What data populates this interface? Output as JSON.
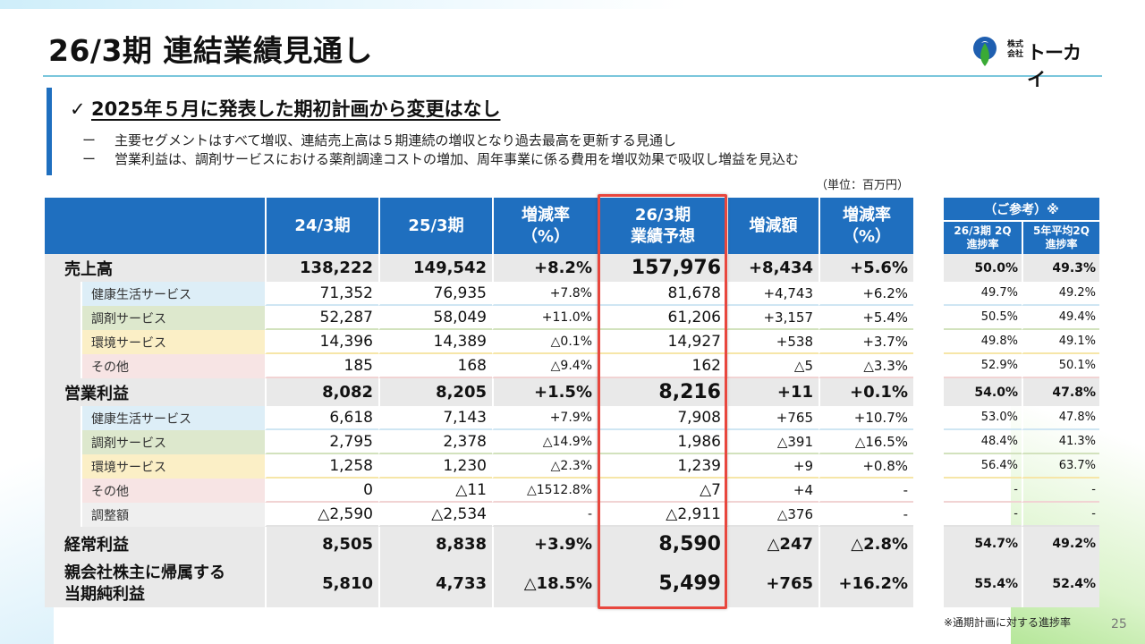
{
  "title": "26/3期 連結業績見通し",
  "logo": {
    "small": "株式\n会社",
    "name": "トーカイ",
    "colors": {
      "blue": "#1f5fb0",
      "green": "#3aaa35"
    }
  },
  "headline": {
    "check": "✓",
    "text": "2025年５月に発表した期初計画から変更はなし"
  },
  "bullets": [
    {
      "dash": "ー",
      "text": "主要セグメントはすべて増収、連結売上高は５期連続の増収となり過去最高を更新する見通し"
    },
    {
      "dash": "ー",
      "text": "営業利益は、調剤サービスにおける薬剤調達コストの増加、周年事業に係る費用を増収効果で吸収し増益を見込む"
    }
  ],
  "unit": "（単位：百万円）",
  "table": {
    "headers": [
      "24/3期",
      "25/3期",
      "増減率\n（%）",
      "26/3期\n業績予想",
      "増減額",
      "増減率\n（%）"
    ],
    "rows": [
      {
        "label": "売上高",
        "v": [
          "138,222",
          "149,542",
          "+8.2%",
          "157,976",
          "+8,434",
          "+5.6%"
        ],
        "ref": [
          "50.0%",
          "49.3%"
        ]
      },
      {
        "label": "健康生活サービス",
        "v": [
          "71,352",
          "76,935",
          "+7.8%",
          "81,678",
          "+4,743",
          "+6.2%"
        ],
        "ref": [
          "49.7%",
          "49.2%"
        ]
      },
      {
        "label": "調剤サービス",
        "v": [
          "52,287",
          "58,049",
          "+11.0%",
          "61,206",
          "+3,157",
          "+5.4%"
        ],
        "ref": [
          "50.5%",
          "49.4%"
        ]
      },
      {
        "label": "環境サービス",
        "v": [
          "14,396",
          "14,389",
          "△0.1%",
          "14,927",
          "+538",
          "+3.7%"
        ],
        "ref": [
          "49.8%",
          "49.1%"
        ]
      },
      {
        "label": "その他",
        "v": [
          "185",
          "168",
          "△9.4%",
          "162",
          "△5",
          "△3.3%"
        ],
        "ref": [
          "52.9%",
          "50.1%"
        ]
      },
      {
        "label": "営業利益",
        "v": [
          "8,082",
          "8,205",
          "+1.5%",
          "8,216",
          "+11",
          "+0.1%"
        ],
        "ref": [
          "54.0%",
          "47.8%"
        ]
      },
      {
        "label": "健康生活サービス",
        "v": [
          "6,618",
          "7,143",
          "+7.9%",
          "7,908",
          "+765",
          "+10.7%"
        ],
        "ref": [
          "53.0%",
          "47.8%"
        ]
      },
      {
        "label": "調剤サービス",
        "v": [
          "2,795",
          "2,378",
          "△14.9%",
          "1,986",
          "△391",
          "△16.5%"
        ],
        "ref": [
          "48.4%",
          "41.3%"
        ]
      },
      {
        "label": "環境サービス",
        "v": [
          "1,258",
          "1,230",
          "△2.3%",
          "1,239",
          "+9",
          "+0.8%"
        ],
        "ref": [
          "56.4%",
          "63.7%"
        ]
      },
      {
        "label": "その他",
        "v": [
          "0",
          "△11",
          "△1512.8%",
          "△7",
          "+4",
          "-"
        ],
        "ref": [
          "-",
          "-"
        ]
      },
      {
        "label": "調整額",
        "v": [
          "△2,590",
          "△2,534",
          "-",
          "△2,911",
          "△376",
          "-"
        ],
        "ref": [
          "-",
          "-"
        ]
      },
      {
        "label": "経常利益",
        "v": [
          "8,505",
          "8,838",
          "+3.9%",
          "8,590",
          "△247",
          "△2.8%"
        ],
        "ref": [
          "54.7%",
          "49.2%"
        ]
      },
      {
        "label": "親会社株主に帰属する\n当期純利益",
        "v": [
          "5,810",
          "4,733",
          "△18.5%",
          "5,499",
          "+765",
          "+16.2%"
        ],
        "ref": [
          "55.4%",
          "52.4%"
        ]
      }
    ]
  },
  "reference": {
    "title": "（ご参考）※",
    "headers": [
      "26/3期 2Q\n進捗率",
      "5年平均2Q\n進捗率"
    ]
  },
  "footnote": "※通期計画に対する進捗率",
  "page_number": "25",
  "colors": {
    "header_blue": "#1f6fbf",
    "highlight_red": "#e8473e",
    "accent_teal": "#7ac6dc"
  }
}
